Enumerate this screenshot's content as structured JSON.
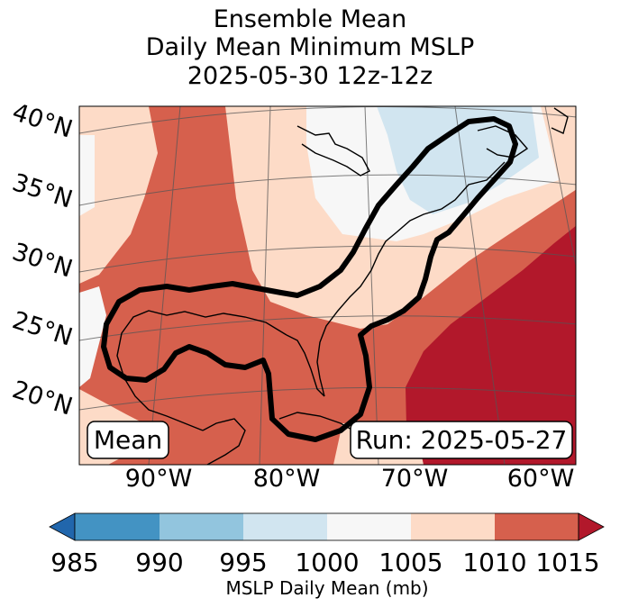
{
  "title": {
    "line1": "Ensemble Mean",
    "line2": "Daily Mean Minimum MSLP",
    "line3": "2025-05-30 12z-12z"
  },
  "map": {
    "lat_labels": [
      "40°N",
      "35°N",
      "30°N",
      "25°N",
      "20°N"
    ],
    "lon_labels": [
      "90°W",
      "80°W",
      "70°W",
      "60°W"
    ],
    "mean_label": "Mean",
    "run_label": "Run: 2025-05-27",
    "field_colors": {
      "lt_1000": "#d1e5f0",
      "1000_1005": "#f7f7f7",
      "1005_1010": "#fddbc7",
      "1010_1015": "#d6604d",
      "gt_1015": "#b2182b"
    },
    "outline_color": "#000000"
  },
  "colorbar": {
    "label": "MSLP Daily Mean (mb)",
    "ticks": [
      "985",
      "990",
      "995",
      "1000",
      "1005",
      "1010",
      "1015"
    ],
    "colors": [
      "#4393c3",
      "#92c5de",
      "#d1e5f0",
      "#f7f7f7",
      "#fddbc7",
      "#d6604d"
    ],
    "extend_low_color": "#2166ac",
    "extend_high_color": "#b2182b"
  }
}
